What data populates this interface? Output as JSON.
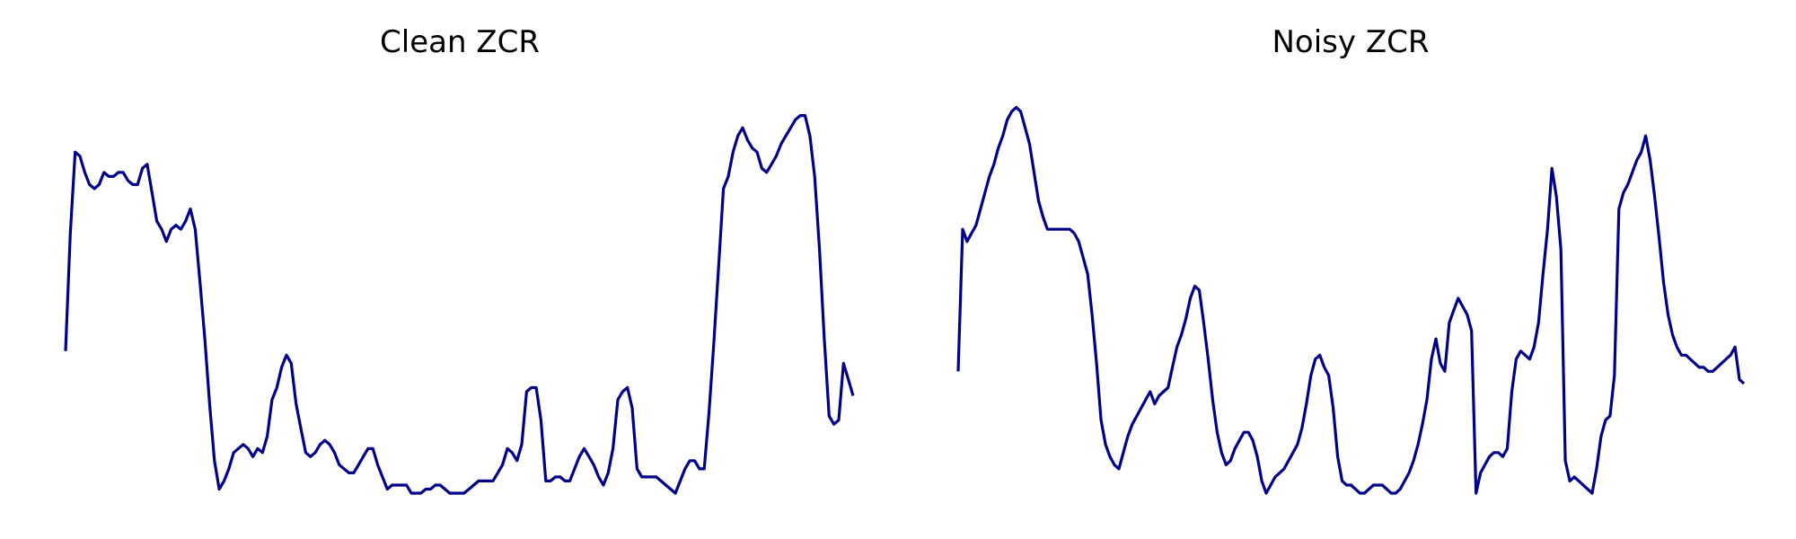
{
  "chart_data": [
    {
      "type": "line",
      "title": "Clean ZCR",
      "xlabel": "",
      "ylabel": "",
      "grid": false,
      "axes": "off",
      "ylim": [
        0,
        100
      ],
      "color": "#00008b",
      "series": [
        {
          "values": [
            35,
            64,
            84,
            83,
            79,
            76,
            75,
            76,
            79,
            78,
            78,
            79,
            79,
            77,
            76,
            76,
            80,
            81,
            74,
            67,
            65,
            62,
            65,
            66,
            65,
            67,
            70,
            65,
            52,
            38,
            22,
            8,
            1,
            3,
            6,
            10,
            11,
            12,
            11,
            9,
            11,
            10,
            14,
            23,
            26,
            31,
            34,
            32,
            22,
            16,
            10,
            9,
            10,
            12,
            13,
            12,
            10,
            7,
            6,
            5,
            5,
            7,
            9,
            11,
            11,
            7,
            4,
            1,
            2,
            2,
            2,
            2,
            0,
            0,
            0,
            1,
            1,
            2,
            2,
            1,
            0,
            0,
            0,
            0,
            1,
            2,
            3,
            3,
            3,
            3,
            5,
            7,
            11,
            10,
            8,
            12,
            25,
            26,
            26,
            18,
            3,
            3,
            4,
            4,
            3,
            3,
            6,
            9,
            11,
            9,
            7,
            4,
            2,
            5,
            11,
            23,
            25,
            26,
            21,
            6,
            4,
            4,
            4,
            4,
            3,
            2,
            1,
            0,
            3,
            6,
            8,
            8,
            6,
            6,
            20,
            37,
            56,
            75,
            78,
            84,
            88,
            90,
            87,
            85,
            84,
            80,
            79,
            81,
            83,
            86,
            88,
            90,
            92,
            93,
            93,
            88,
            78,
            60,
            38,
            19,
            17,
            18,
            32,
            28,
            24
          ]
        }
      ]
    },
    {
      "type": "line",
      "title": "Noisy ZCR",
      "xlabel": "",
      "ylabel": "",
      "grid": false,
      "axes": "off",
      "ylim": [
        0,
        100
      ],
      "color": "#00008b",
      "series": [
        {
          "values": [
            30,
            65,
            62,
            64,
            66,
            70,
            74,
            78,
            81,
            85,
            88,
            92,
            94,
            95,
            94,
            90,
            86,
            79,
            72,
            68,
            65,
            65,
            65,
            65,
            65,
            65,
            64,
            62,
            58,
            54,
            44,
            32,
            18,
            12,
            9,
            7,
            6,
            10,
            14,
            17,
            19,
            21,
            23,
            25,
            22,
            24,
            25,
            26,
            31,
            36,
            39,
            43,
            48,
            51,
            50,
            42,
            33,
            23,
            15,
            10,
            7,
            8,
            11,
            13,
            15,
            15,
            13,
            9,
            3,
            0,
            2,
            4,
            5,
            6,
            8,
            10,
            12,
            16,
            22,
            29,
            33,
            34,
            31,
            29,
            21,
            9,
            3,
            2,
            2,
            1,
            0,
            0,
            1,
            2,
            2,
            2,
            1,
            0,
            0,
            1,
            3,
            5,
            8,
            12,
            17,
            23,
            33,
            38,
            32,
            30,
            42,
            45,
            48,
            46,
            44,
            40,
            0,
            5,
            7,
            9,
            10,
            10,
            9,
            11,
            25,
            33,
            35,
            34,
            33,
            36,
            42,
            54,
            65,
            80,
            73,
            60,
            8,
            3,
            4,
            3,
            2,
            1,
            0,
            6,
            14,
            18,
            19,
            29,
            70,
            74,
            76,
            79,
            82,
            84,
            88,
            82,
            73,
            63,
            52,
            44,
            39,
            36,
            34,
            34,
            33,
            32,
            31,
            31,
            30,
            30,
            31,
            32,
            33,
            34,
            36,
            28,
            27
          ]
        }
      ]
    }
  ]
}
